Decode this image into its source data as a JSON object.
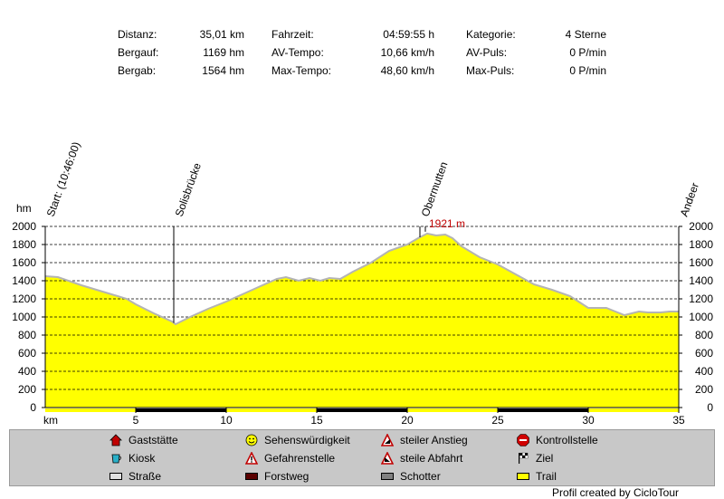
{
  "stats": {
    "distanz": {
      "label": "Distanz:",
      "value": "35,01 km"
    },
    "bergauf": {
      "label": "Bergauf:",
      "value": "1169 hm"
    },
    "bergab": {
      "label": "Bergab:",
      "value": "1564 hm"
    },
    "fahrzeit": {
      "label": "Fahrzeit:",
      "value": "04:59:55 h"
    },
    "av_tempo": {
      "label": "AV-Tempo:",
      "value": "10,66 km/h"
    },
    "max_tempo": {
      "label": "Max-Tempo:",
      "value": "48,60 km/h"
    },
    "kategorie": {
      "label": "Kategorie:",
      "value": "4 Sterne"
    },
    "av_puls": {
      "label": "AV-Puls:",
      "value": "0 P/min"
    },
    "max_puls": {
      "label": "Max-Puls:",
      "value": "0 P/min"
    }
  },
  "chart_data": {
    "type": "area",
    "ylabel": "hm",
    "xlabel": "km",
    "xlim": [
      0,
      35
    ],
    "ylim": [
      0,
      2000
    ],
    "x_ticks": [
      5,
      10,
      15,
      20,
      25,
      30,
      35
    ],
    "y_ticks": [
      0,
      200,
      400,
      600,
      800,
      1000,
      1200,
      1400,
      1600,
      1800,
      2000
    ],
    "grid": true,
    "fill_color": "#ffff00",
    "line_color": "#b4b4b4",
    "max_label": "1921 m",
    "max_point": {
      "x": 21.0,
      "y": 1921
    },
    "waypoints": [
      {
        "label": "Start: (10:46:00)",
        "x": 0
      },
      {
        "label": "Solisbrücke",
        "x": 7.1
      },
      {
        "label": "Obermutten",
        "x": 20.7
      },
      {
        "label": "Andeer",
        "x": 35.0
      }
    ],
    "surface_segments": [
      [
        5,
        10
      ],
      [
        15,
        20
      ],
      [
        25,
        30
      ]
    ],
    "series": [
      {
        "x": [
          0,
          0.7,
          2,
          3.5,
          4.5,
          5,
          6,
          7,
          7.2,
          8,
          9,
          10,
          11,
          12,
          12.8,
          13.3,
          14,
          14.6,
          15.2,
          15.7,
          16.3,
          17,
          18,
          19,
          20,
          20.6,
          21.1,
          21.6,
          22.1,
          22.5,
          23,
          24,
          25,
          26,
          27,
          28,
          29,
          30,
          31,
          31.5,
          32,
          32.8,
          33.3,
          34,
          34.5,
          35
        ],
        "y": [
          1450,
          1440,
          1350,
          1260,
          1200,
          1140,
          1040,
          950,
          920,
          1000,
          1090,
          1170,
          1260,
          1350,
          1420,
          1440,
          1400,
          1430,
          1400,
          1430,
          1420,
          1500,
          1600,
          1730,
          1800,
          1870,
          1921,
          1900,
          1910,
          1870,
          1780,
          1660,
          1580,
          1470,
          1360,
          1300,
          1230,
          1100,
          1100,
          1060,
          1020,
          1060,
          1050,
          1050,
          1060,
          1060
        ]
      }
    ]
  },
  "legend": {
    "items": [
      {
        "key": "gaststaette",
        "label": "Gaststätte",
        "icon": "house-icon"
      },
      {
        "key": "kiosk",
        "label": "Kiosk",
        "icon": "cup-icon"
      },
      {
        "key": "strasse",
        "label": "Straße",
        "icon": "road-swatch"
      },
      {
        "key": "sehenswuerdigkeit",
        "label": "Sehenswürdigkeit",
        "icon": "smiley-icon"
      },
      {
        "key": "gefahrenstelle",
        "label": "Gefahrenstelle",
        "icon": "warning-icon"
      },
      {
        "key": "forstweg",
        "label": "Forstweg",
        "icon": "forest-road-swatch"
      },
      {
        "key": "steiler_anstieg",
        "label": "steiler Anstieg",
        "icon": "steep-up-icon"
      },
      {
        "key": "steile_abfahrt",
        "label": "steile Abfahrt",
        "icon": "steep-down-icon"
      },
      {
        "key": "schotter",
        "label": "Schotter",
        "icon": "gravel-swatch"
      },
      {
        "key": "kontrollstelle",
        "label": "Kontrollstelle",
        "icon": "stop-icon"
      },
      {
        "key": "ziel",
        "label": "Ziel",
        "icon": "finish-flag-icon"
      },
      {
        "key": "trail",
        "label": "Trail",
        "icon": "trail-swatch"
      }
    ]
  },
  "credit": "Profil created by CicloTour"
}
